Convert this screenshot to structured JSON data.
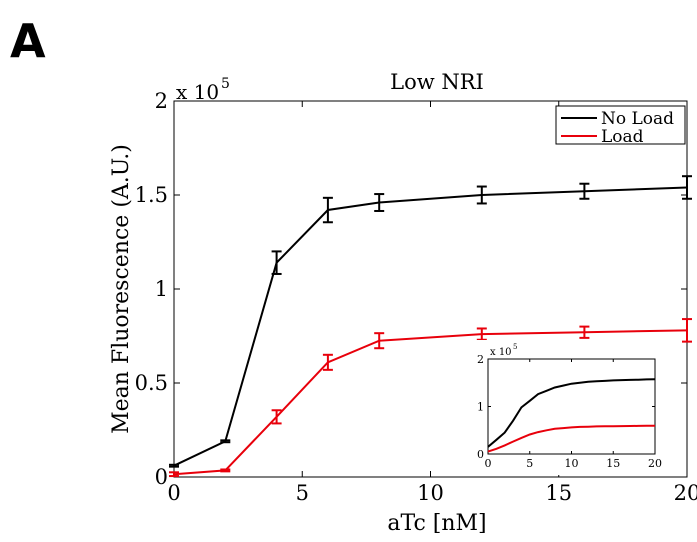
{
  "panel_label": "A",
  "chart_data": [
    {
      "type": "line",
      "title": "Low NRI",
      "xlabel": "aTc [nM]",
      "ylabel": "Mean Fluorescence (A.U.)",
      "y_multiplier": "x 10",
      "y_multiplier_exp": "5",
      "xlim": [
        0,
        20
      ],
      "ylim": [
        0,
        2
      ],
      "xticks": [
        "0",
        "5",
        "10",
        "15",
        "20"
      ],
      "yticks": [
        "0",
        "0.5",
        "1",
        "1.5",
        "2"
      ],
      "x": [
        0,
        2,
        4,
        6,
        8,
        12,
        16,
        20
      ],
      "legend_position": "top-right",
      "series": [
        {
          "name": "No Load",
          "color": "#000000",
          "values": [
            0.06,
            0.19,
            1.14,
            1.42,
            1.46,
            1.5,
            1.52,
            1.54
          ],
          "err": [
            0.005,
            0.005,
            0.06,
            0.065,
            0.045,
            0.045,
            0.04,
            0.06
          ]
        },
        {
          "name": "Load",
          "color": "#e8000b",
          "values": [
            0.015,
            0.035,
            0.32,
            0.61,
            0.725,
            0.76,
            0.77,
            0.78
          ],
          "err": [
            0.01,
            0.005,
            0.035,
            0.04,
            0.04,
            0.03,
            0.03,
            0.06
          ]
        }
      ]
    },
    {
      "type": "line",
      "title": "",
      "y_multiplier": "x 10",
      "y_multiplier_exp": "5",
      "xlim": [
        0,
        20
      ],
      "ylim": [
        0,
        2
      ],
      "xticks": [
        "0",
        "5",
        "10",
        "15",
        "20"
      ],
      "yticks": [
        "0",
        "1",
        "2"
      ],
      "x": [
        0,
        1,
        2,
        3,
        4,
        5,
        6,
        7,
        8,
        9,
        10,
        11,
        12,
        13,
        14,
        15,
        16,
        17,
        18,
        19,
        20
      ],
      "series": [
        {
          "color": "#000000",
          "values": [
            0.15,
            0.3,
            0.45,
            0.7,
            0.98,
            1.12,
            1.26,
            1.33,
            1.4,
            1.44,
            1.48,
            1.5,
            1.52,
            1.53,
            1.54,
            1.55,
            1.555,
            1.56,
            1.565,
            1.57,
            1.575
          ]
        },
        {
          "color": "#e8000b",
          "values": [
            0.05,
            0.11,
            0.18,
            0.26,
            0.34,
            0.41,
            0.46,
            0.5,
            0.53,
            0.545,
            0.56,
            0.57,
            0.575,
            0.58,
            0.583,
            0.586,
            0.588,
            0.59,
            0.592,
            0.594,
            0.595
          ]
        }
      ]
    }
  ]
}
